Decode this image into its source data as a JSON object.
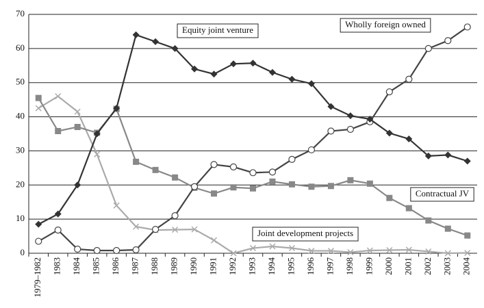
{
  "chart_data": {
    "type": "line",
    "categories": [
      "1979–1982",
      "1983",
      "1984",
      "1985",
      "1986",
      "1987",
      "1988",
      "1989",
      "1990",
      "1991",
      "1992",
      "1993",
      "1994",
      "1995",
      "1996",
      "1997",
      "1998",
      "1999",
      "2000",
      "2001",
      "2002",
      "2003",
      "2004"
    ],
    "series": [
      {
        "name": "Equity joint venture",
        "color": "#333333",
        "marker": "diamond",
        "values": [
          8.5,
          11.5,
          20,
          35,
          42.5,
          64,
          62,
          60,
          54,
          52.5,
          55.5,
          55.7,
          53,
          51,
          49.7,
          43,
          40.3,
          39.3,
          35.2,
          33.5,
          28.5,
          28.8,
          27
        ]
      },
      {
        "name": "Wholly foreign owned",
        "color": "#444444",
        "marker": "circle",
        "values": [
          3.5,
          6.8,
          1.2,
          0.8,
          0.8,
          1.0,
          7,
          11,
          19.5,
          26,
          25.3,
          23.6,
          23.8,
          27.5,
          30.3,
          35.8,
          36.3,
          38.5,
          47.3,
          51,
          60,
          62.3,
          66.3
        ]
      },
      {
        "name": "Contractual JV",
        "color": "#888888",
        "marker": "square",
        "values": [
          45.5,
          35.8,
          37,
          35.3,
          42.3,
          26.8,
          24.4,
          22.2,
          19.2,
          17.5,
          19.3,
          19,
          21,
          20.2,
          19.5,
          19.7,
          21.4,
          20.4,
          16.2,
          13.2,
          9.6,
          7.2,
          5.2
        ]
      },
      {
        "name": "Joint development projects",
        "color": "#aaaaaa",
        "marker": "x",
        "values": [
          42.5,
          46,
          41.5,
          29,
          14,
          7.8,
          6.8,
          6.9,
          7,
          3.8,
          0,
          1.5,
          2,
          1.5,
          0.7,
          0.7,
          0.3,
          0.8,
          0.9,
          1,
          0.5,
          0,
          0.1
        ]
      }
    ],
    "ylim": [
      0,
      70
    ],
    "yticks": [
      0,
      10,
      20,
      30,
      40,
      50,
      60,
      70
    ],
    "grid": true
  }
}
